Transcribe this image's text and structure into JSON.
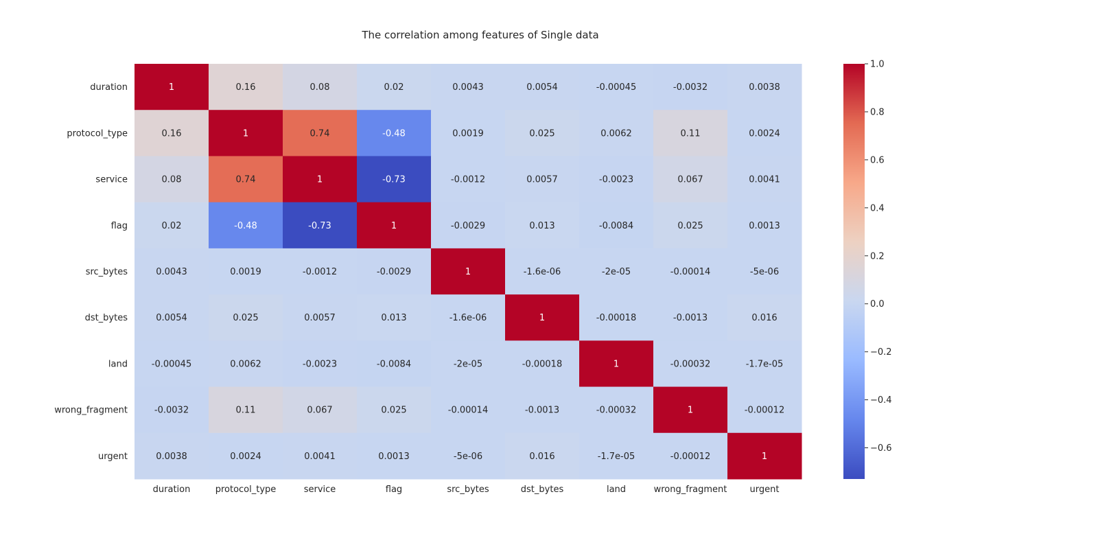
{
  "chart_data": {
    "type": "heatmap",
    "title": "The correlation among features of Single data",
    "features": [
      "duration",
      "protocol_type",
      "service",
      "flag",
      "src_bytes",
      "dst_bytes",
      "land",
      "wrong_fragment",
      "urgent"
    ],
    "values": [
      [
        1,
        0.16,
        0.08,
        0.02,
        0.0043,
        0.0054,
        -0.00045,
        -0.0032,
        0.0038
      ],
      [
        0.16,
        1,
        0.74,
        -0.48,
        0.0019,
        0.025,
        0.0062,
        0.11,
        0.0024
      ],
      [
        0.08,
        0.74,
        1,
        -0.73,
        -0.0012,
        0.0057,
        -0.0023,
        0.067,
        0.0041
      ],
      [
        0.02,
        -0.48,
        -0.73,
        1,
        -0.0029,
        0.013,
        -0.0084,
        0.025,
        0.0013
      ],
      [
        0.0043,
        0.0019,
        -0.0012,
        -0.0029,
        1,
        -1.6e-06,
        -2e-05,
        -0.00014,
        -5e-06
      ],
      [
        0.0054,
        0.025,
        0.0057,
        0.013,
        -1.6e-06,
        1,
        -0.00018,
        -0.0013,
        0.016
      ],
      [
        -0.00045,
        0.0062,
        -0.0023,
        -0.0084,
        -2e-05,
        -0.00018,
        1,
        -0.00032,
        -1.7e-05
      ],
      [
        -0.0032,
        0.11,
        0.067,
        0.025,
        -0.00014,
        -0.0013,
        -0.00032,
        1,
        -0.00012
      ],
      [
        0.0038,
        0.0024,
        0.0041,
        0.0013,
        -5e-06,
        0.016,
        -1.7e-05,
        -0.00012,
        1
      ]
    ],
    "annotations": [
      [
        "1",
        "0.16",
        "0.08",
        "0.02",
        "0.0043",
        "0.0054",
        "-0.00045",
        "-0.0032",
        "0.0038"
      ],
      [
        "0.16",
        "1",
        "0.74",
        "-0.48",
        "0.0019",
        "0.025",
        "0.0062",
        "0.11",
        "0.0024"
      ],
      [
        "0.08",
        "0.74",
        "1",
        "-0.73",
        "-0.0012",
        "0.0057",
        "-0.0023",
        "0.067",
        "0.0041"
      ],
      [
        "0.02",
        "-0.48",
        "-0.73",
        "1",
        "-0.0029",
        "0.013",
        "-0.0084",
        "0.025",
        "0.0013"
      ],
      [
        "0.0043",
        "0.0019",
        "-0.0012",
        "-0.0029",
        "1",
        "-1.6e-06",
        "-2e-05",
        "-0.00014",
        "-5e-06"
      ],
      [
        "0.0054",
        "0.025",
        "0.0057",
        "0.013",
        "-1.6e-06",
        "1",
        "-0.00018",
        "-0.0013",
        "0.016"
      ],
      [
        "-0.00045",
        "0.0062",
        "-0.0023",
        "-0.0084",
        "-2e-05",
        "-0.00018",
        "1",
        "-0.00032",
        "-1.7e-05"
      ],
      [
        "-0.0032",
        "0.11",
        "0.067",
        "0.025",
        "-0.00014",
        "-0.0013",
        "-0.00032",
        "1",
        "-0.00012"
      ],
      [
        "0.0038",
        "0.0024",
        "0.0041",
        "0.0013",
        "-5e-06",
        "0.016",
        "-1.7e-05",
        "-0.00012",
        "1"
      ]
    ],
    "colormap": "coolwarm",
    "colormap_stops": [
      "#3b4cc0",
      "#6687ed",
      "#99baff",
      "#c9d7f0",
      "#edd1c2",
      "#f7a889",
      "#e36a53",
      "#b40426"
    ],
    "colorbar": {
      "range": [
        -0.73,
        1.0
      ],
      "ticks": [
        "1.0",
        "0.8",
        "0.6",
        "0.4",
        "0.2",
        "0.0",
        "−0.2",
        "−0.4",
        "−0.6"
      ],
      "tick_values": [
        1.0,
        0.8,
        0.6,
        0.4,
        0.2,
        0.0,
        -0.2,
        -0.4,
        -0.6
      ]
    }
  }
}
